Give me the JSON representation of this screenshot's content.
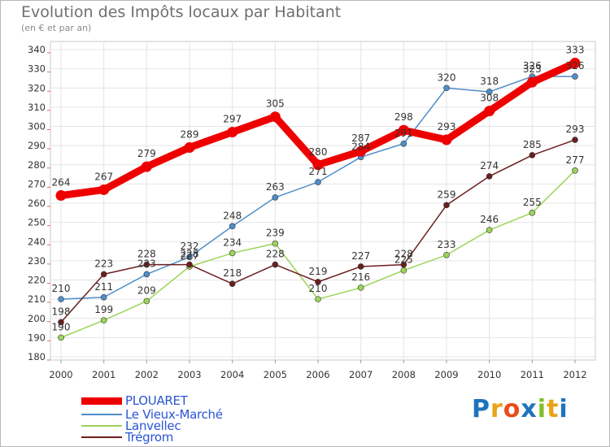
{
  "header": {
    "title": "Evolution des Impôts locaux par Habitant",
    "subtitle": "(en € et par an)"
  },
  "chart_data": {
    "type": "line",
    "title": "Evolution des Impôts locaux par Habitant",
    "subtitle": "(en € et par an)",
    "xlabel": "",
    "ylabel": "",
    "ylim": [
      180,
      340
    ],
    "ytick_step": 10,
    "grid": true,
    "x": [
      "2000",
      "2001",
      "2002",
      "2003",
      "2004",
      "2005",
      "2006",
      "2007",
      "2008",
      "2009",
      "2010",
      "2011",
      "2012"
    ],
    "series": [
      {
        "name": "PLOUARET",
        "color": "#ee0000",
        "thick": true,
        "values": [
          264,
          267,
          279,
          289,
          297,
          305,
          280,
          287,
          298,
          293,
          308,
          323,
          333
        ]
      },
      {
        "name": "Le Vieux-Marché",
        "color": "#4f8ec9",
        "values": [
          210,
          211,
          223,
          232,
          248,
          263,
          271,
          284,
          291,
          320,
          318,
          326,
          326
        ]
      },
      {
        "name": "Lanvellec",
        "color": "#9bd45a",
        "values": [
          190,
          199,
          209,
          227,
          234,
          239,
          210,
          216,
          225,
          233,
          246,
          255,
          277
        ]
      },
      {
        "name": "Trégrom",
        "color": "#6b1f1f",
        "values": [
          198,
          223,
          228,
          228,
          218,
          228,
          219,
          227,
          228,
          259,
          274,
          285,
          293
        ]
      }
    ]
  },
  "brand": {
    "name": "Proxiti",
    "letters": [
      "P",
      "r",
      "o",
      "x",
      "i",
      "t",
      "i"
    ],
    "colors": [
      "#1e73be",
      "#e8a317",
      "#e84d1c",
      "#1e73be",
      "#7fbf2a",
      "#e8a317",
      "#1e73be"
    ]
  }
}
